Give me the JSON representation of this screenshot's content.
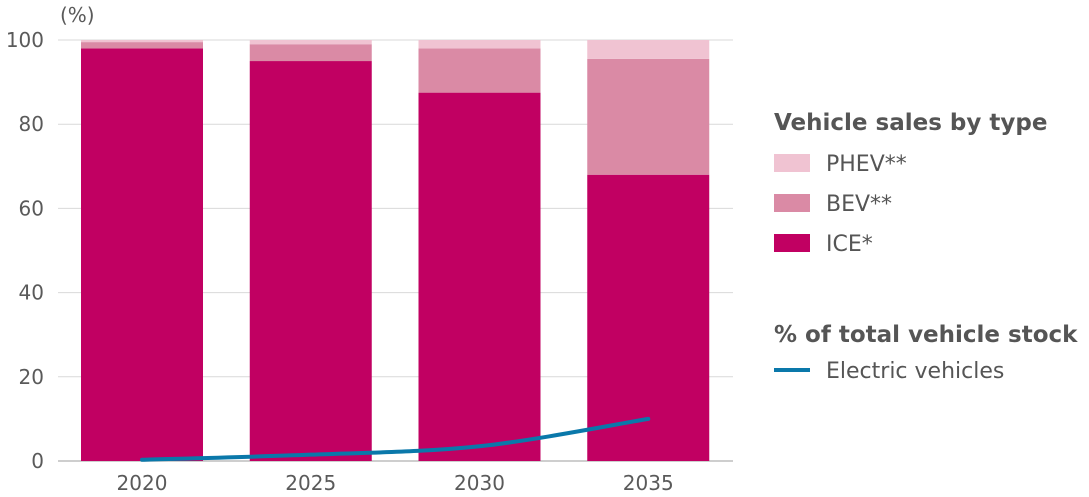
{
  "chart_data": {
    "type": "bar",
    "stacked": true,
    "unit_label": "(%)",
    "categories": [
      "2020",
      "2025",
      "2030",
      "2035"
    ],
    "ylim": [
      0,
      100
    ],
    "yticks": [
      0,
      20,
      40,
      60,
      80,
      100
    ],
    "grid": true,
    "series": [
      {
        "name": "ICE*",
        "values": [
          98,
          95,
          87.5,
          68
        ],
        "color": "#c10062"
      },
      {
        "name": "BEV**",
        "values": [
          1.5,
          4,
          10.5,
          27.5
        ],
        "color": "#da8aa5"
      },
      {
        "name": "PHEV**",
        "values": [
          0.5,
          1,
          2,
          4.5
        ],
        "color": "#f0c3d2"
      }
    ],
    "lines": [
      {
        "name": "Electric vehicles",
        "values": [
          0.3,
          1.5,
          3.5,
          10
        ],
        "color": "#0a78aa"
      }
    ],
    "legend": {
      "placement": "right",
      "bar_title": "Vehicle sales by type",
      "line_title": "% of total vehicle stock"
    }
  }
}
